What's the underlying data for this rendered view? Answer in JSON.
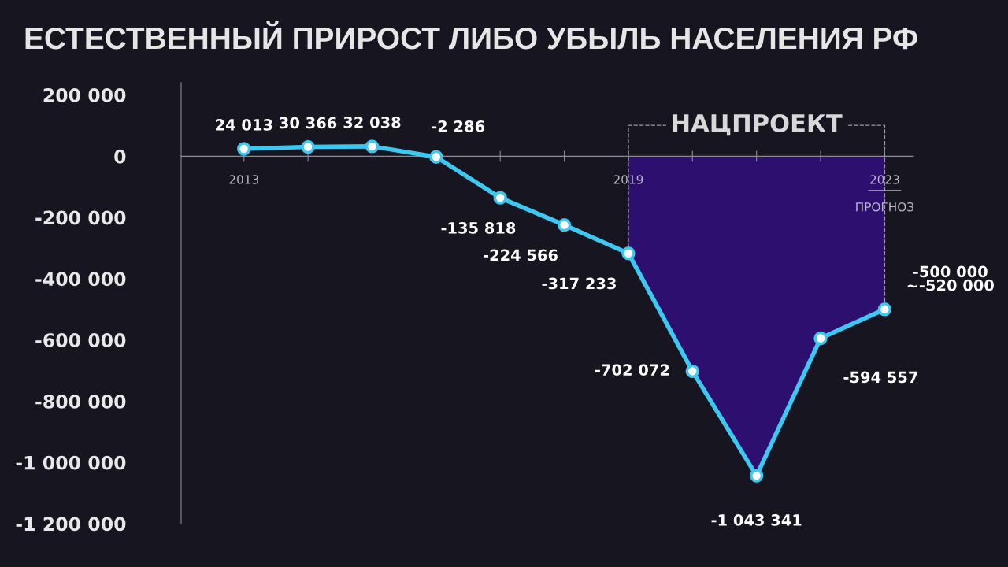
{
  "chart_data": {
    "type": "line",
    "title": "ЕСТЕСТВЕННЫЙ ПРИРОСТ ЛИБО УБЫЛЬ НАСЕЛЕНИЯ РФ",
    "categories": [
      "2013",
      null,
      null,
      null,
      null,
      null,
      "2019",
      null,
      null,
      null,
      "2023"
    ],
    "series": [
      {
        "color": "#3cc8f0",
        "values": [
          24013,
          30366,
          32038,
          -2286,
          -135818,
          -224566,
          -317233,
          -702072,
          -1043341,
          -594557,
          -500000
        ],
        "value_labels": [
          "24 013",
          "30 366",
          "32 038",
          "-2 286",
          "-135 818",
          "-224 566",
          "-317 233",
          "-702 072",
          "-1 043 341",
          "-594 557",
          "-500 000\n~-520 000"
        ]
      },
      {
        "type": "area",
        "marker": "none",
        "color": "#2c0f6e",
        "values": [
          null,
          null,
          null,
          null,
          null,
          null,
          -320000,
          -700000,
          -1040000,
          -590000,
          -500000
        ]
      }
    ],
    "ylim": [
      -1200000,
      240000
    ],
    "yticks": [
      {
        "value": 200000,
        "label": "200 000"
      },
      0,
      {
        "value": -200000,
        "label": "-200 000"
      },
      {
        "value": -400000,
        "label": "-400 000"
      },
      {
        "value": -600000,
        "label": "-600 000"
      },
      {
        "value": -800000,
        "label": "-800 000"
      },
      {
        "value": -1000000,
        "label": "-1 000 000"
      },
      {
        "value": -1200000,
        "label": "-1 200 000"
      }
    ],
    "bands": [
      {
        "axis": "x",
        "from": "2019",
        "to": "2023",
        "label": "НАЦПРОЕКТ"
      }
    ],
    "annotations": [
      "ПРОГНОЗ"
    ],
    "marker": "circle",
    "line_style": "solid",
    "grid": false,
    "legend": false
  }
}
